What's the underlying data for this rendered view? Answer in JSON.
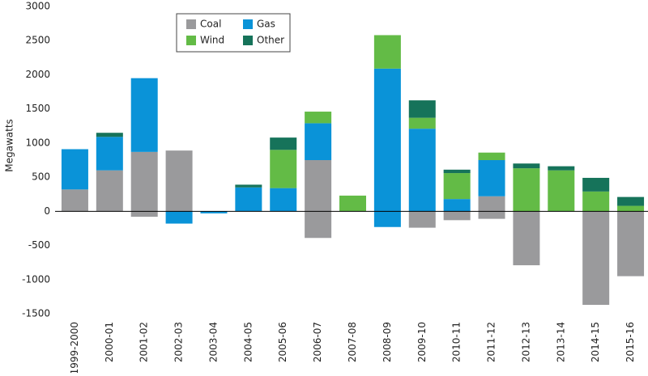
{
  "chart_data": {
    "type": "bar",
    "stacked": true,
    "y_label": "Megawatts",
    "categories": [
      "1999-2000",
      "2000-01",
      "2001-02",
      "2002-03",
      "2003-04",
      "2004-05",
      "2005-06",
      "2006-07",
      "2007-08",
      "2008-09",
      "2009-10",
      "2010-11",
      "2011-12",
      "2012-13",
      "2013-14",
      "2014-15",
      "2015-16"
    ],
    "series": [
      {
        "name": "Coal",
        "color": "#9a9a9c",
        "values": [
          320,
          600,
          870,
          890,
          0,
          0,
          0,
          750,
          0,
          0,
          0,
          0,
          220,
          0,
          0,
          0,
          0
        ]
      },
      {
        "name": "Gas",
        "color": "#0a93d8",
        "values": [
          590,
          490,
          1080,
          0,
          0,
          350,
          340,
          540,
          0,
          2090,
          1210,
          180,
          530,
          0,
          0,
          0,
          0
        ]
      },
      {
        "name": "Wind",
        "color": "#63bb46",
        "values": [
          0,
          0,
          0,
          0,
          0,
          0,
          560,
          170,
          230,
          490,
          160,
          380,
          110,
          630,
          600,
          290,
          80
        ]
      },
      {
        "name": "Other",
        "color": "#16735a",
        "values": [
          0,
          60,
          0,
          0,
          0,
          40,
          180,
          0,
          0,
          0,
          255,
          50,
          0,
          70,
          60,
          200,
          130
        ]
      },
      {
        "color": "#9a9a9c",
        "values": [
          0,
          0,
          -80,
          0,
          0,
          0,
          0,
          -390,
          0,
          0,
          -240,
          -130,
          -110,
          -790,
          0,
          -1370,
          -950
        ]
      },
      {
        "color": "#0a93d8",
        "values": [
          0,
          0,
          0,
          -180,
          -30,
          0,
          0,
          0,
          0,
          -230,
          0,
          0,
          0,
          0,
          0,
          0,
          0
        ]
      }
    ],
    "ylim": [
      -1500,
      3000
    ],
    "yticks": [
      -1500,
      -1000,
      -500,
      0,
      500,
      1000,
      1500,
      2000,
      2500,
      3000
    ],
    "grid": false,
    "legend": "top-left"
  }
}
